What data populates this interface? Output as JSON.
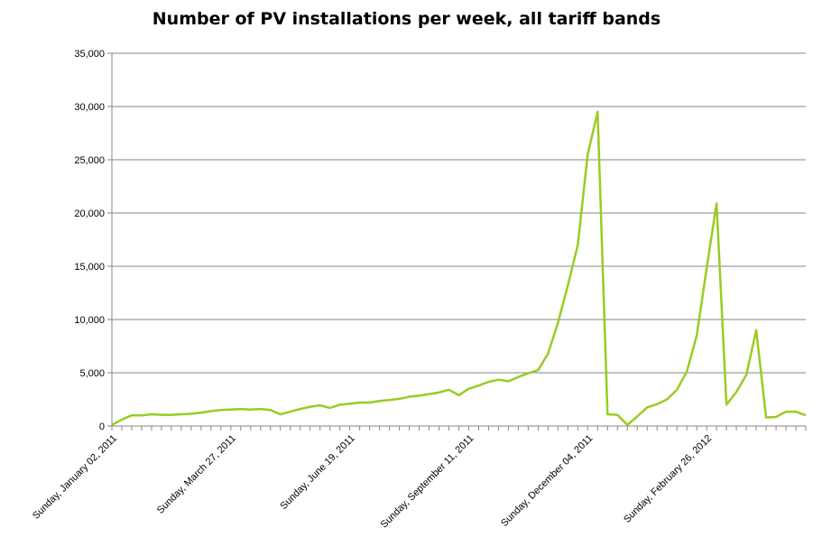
{
  "chart_data": {
    "type": "line",
    "title": "Number of PV installations per week, all tariff bands",
    "xlabel": "",
    "ylabel": "",
    "ylim": [
      0,
      35000
    ],
    "yticks": [
      0,
      5000,
      10000,
      15000,
      20000,
      25000,
      30000,
      35000
    ],
    "ytick_labels": [
      "0",
      "5,000",
      "10,000",
      "15,000",
      "20,000",
      "25,000",
      "30,000",
      "35,000"
    ],
    "grid": "horizontal",
    "line_color": "#99cc22",
    "x_tick_labels": [
      {
        "index": 0,
        "label": "Sunday, January 02, 2011"
      },
      {
        "index": 12,
        "label": "Sunday, March 27, 2011"
      },
      {
        "index": 24,
        "label": "Sunday, June 19, 2011"
      },
      {
        "index": 36,
        "label": "Sunday, September 11, 2011"
      },
      {
        "index": 48,
        "label": "Sunday, December 04, 2011"
      },
      {
        "index": 60,
        "label": "Sunday, February 26, 2012"
      }
    ],
    "series": [
      {
        "values": [
          100,
          600,
          1000,
          1000,
          1100,
          1050,
          1050,
          1100,
          1150,
          1250,
          1400,
          1500,
          1550,
          1600,
          1550,
          1600,
          1500,
          1100,
          1350,
          1600,
          1800,
          1950,
          1700,
          2000,
          2100,
          2200,
          2200,
          2350,
          2450,
          2550,
          2750,
          2850,
          3000,
          3150,
          3400,
          2900,
          3500,
          3800,
          4150,
          4350,
          4200,
          4600,
          4950,
          5250,
          6800,
          9700,
          13200,
          17000,
          25500,
          29500,
          1100,
          1050,
          100,
          900,
          1750,
          2050,
          2500,
          3400,
          5100,
          8500,
          14800,
          20900,
          2000,
          3200,
          4800,
          9000,
          800,
          850,
          1350,
          1350,
          1000
        ]
      }
    ]
  }
}
